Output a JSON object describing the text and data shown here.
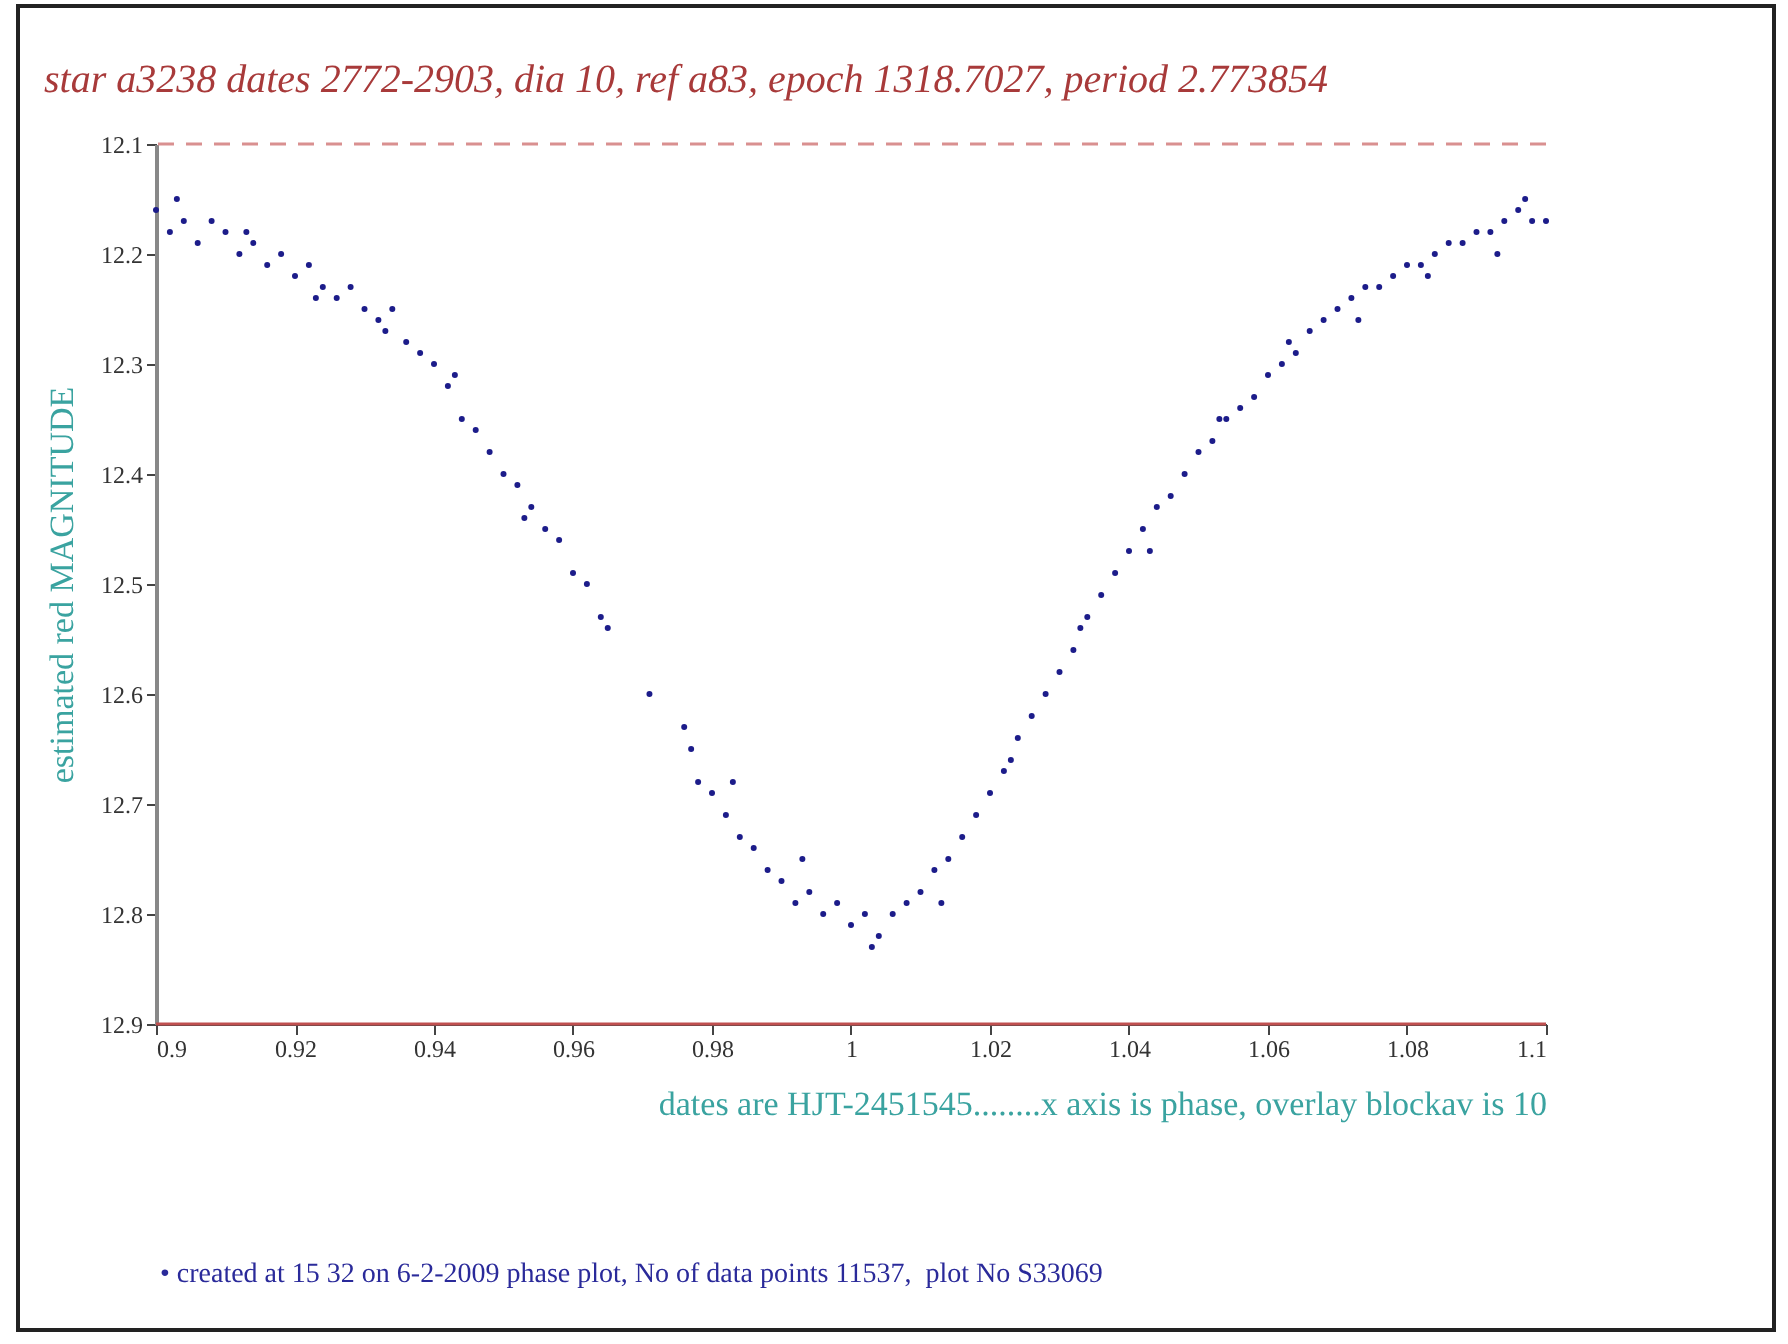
{
  "chart_data": {
    "type": "scatter",
    "title": "star a3238 dates 2772-2903, dia 10, ref a83, epoch 1318.7027, period 2.773854",
    "xlabel": "dates are HJT-2451545........x axis is phase, overlay blockav is 10",
    "ylabel": "estimated red MAGNITUDE",
    "annotations": [
      "• created at 15 32 on 6-2-2009 phase plot, No of data points 11537,  plot No S33069"
    ],
    "x": [
      0.9,
      0.902,
      0.904,
      0.906,
      0.908,
      0.91,
      0.912,
      0.914,
      0.916,
      0.918,
      0.92,
      0.922,
      0.924,
      0.926,
      0.928,
      0.93,
      0.932,
      0.934,
      0.936,
      0.938,
      0.94,
      0.942,
      0.944,
      0.946,
      0.948,
      0.95,
      0.952,
      0.954,
      0.956,
      0.958,
      0.96,
      0.962,
      0.964,
      0.965,
      0.971,
      0.976,
      0.977,
      0.978,
      0.98,
      0.982,
      0.984,
      0.986,
      0.988,
      0.99,
      0.992,
      0.994,
      0.996,
      0.998,
      1.0,
      1.002,
      1.004,
      1.006,
      1.008,
      1.01,
      1.012,
      1.014,
      1.016,
      1.018,
      1.02,
      1.022,
      1.024,
      1.026,
      1.028,
      1.03,
      1.032,
      1.034,
      1.036,
      1.038,
      1.04,
      1.042,
      1.044,
      1.046,
      1.048,
      1.05,
      1.052,
      1.054,
      1.056,
      1.058,
      1.06,
      1.062,
      1.064,
      1.066,
      1.068,
      1.07,
      1.072,
      1.074,
      1.076,
      1.078,
      1.08,
      1.082,
      1.084,
      1.086,
      1.088,
      1.09,
      1.092,
      1.094,
      1.096,
      1.098,
      1.1,
      0.903,
      0.913,
      0.923,
      0.933,
      0.943,
      0.953,
      0.983,
      0.993,
      1.003,
      1.013,
      1.023,
      1.033,
      1.043,
      1.053,
      1.063,
      1.073,
      1.083,
      1.093,
      1.097
    ],
    "series": [
      {
        "color": "#1c1c8a",
        "values": [
          12.16,
          12.18,
          12.17,
          12.19,
          12.17,
          12.18,
          12.2,
          12.19,
          12.21,
          12.2,
          12.22,
          12.21,
          12.23,
          12.24,
          12.23,
          12.25,
          12.26,
          12.25,
          12.28,
          12.29,
          12.3,
          12.32,
          12.35,
          12.36,
          12.38,
          12.4,
          12.41,
          12.43,
          12.45,
          12.46,
          12.49,
          12.5,
          12.53,
          12.54,
          12.6,
          12.63,
          12.65,
          12.68,
          12.69,
          12.71,
          12.73,
          12.74,
          12.76,
          12.77,
          12.79,
          12.78,
          12.8,
          12.79,
          12.81,
          12.8,
          12.82,
          12.8,
          12.79,
          12.78,
          12.76,
          12.75,
          12.73,
          12.71,
          12.69,
          12.67,
          12.64,
          12.62,
          12.6,
          12.58,
          12.56,
          12.53,
          12.51,
          12.49,
          12.47,
          12.45,
          12.43,
          12.42,
          12.4,
          12.38,
          12.37,
          12.35,
          12.34,
          12.33,
          12.31,
          12.3,
          12.29,
          12.27,
          12.26,
          12.25,
          12.24,
          12.23,
          12.23,
          12.22,
          12.21,
          12.21,
          12.2,
          12.19,
          12.19,
          12.18,
          12.18,
          12.17,
          12.16,
          12.17,
          12.17,
          12.15,
          12.18,
          12.24,
          12.27,
          12.31,
          12.44,
          12.68,
          12.75,
          12.83,
          12.79,
          12.66,
          12.54,
          12.47,
          12.35,
          12.28,
          12.26,
          12.22,
          12.2,
          12.15
        ]
      }
    ],
    "xlim": [
      0.9,
      1.1
    ],
    "xticks": [
      0.9,
      0.92,
      0.94,
      0.96,
      0.98,
      1,
      1.02,
      1.04,
      1.06,
      1.08,
      1.1
    ],
    "ylim": [
      12.9,
      12.1
    ],
    "yticks": [
      12.1,
      12.2,
      12.3,
      12.4,
      12.5,
      12.6,
      12.7,
      12.8,
      12.9
    ],
    "ref_lines": [
      {
        "axis": "y",
        "value": 12.1,
        "color": "#d99090",
        "line_style": "dashed"
      },
      {
        "axis": "y",
        "value": 12.9,
        "color": "#c05050",
        "line_style": "solid"
      }
    ],
    "marker": "circle",
    "grid": false,
    "legend": false
  }
}
